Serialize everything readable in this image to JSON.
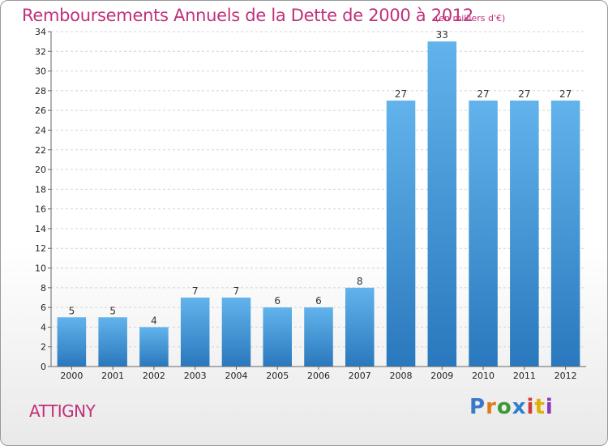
{
  "title": "Remboursements Annuels de la Dette de 2000 à 2012",
  "unit_label": "(en milliers d'€)",
  "town": "ATTIGNY",
  "brand": {
    "letters": [
      "P",
      "r",
      "o",
      "x",
      "i",
      "t",
      "i"
    ],
    "colors": [
      "#3a78c8",
      "#e07b1a",
      "#3a9a3a",
      "#2f7fd0",
      "#d03a3a",
      "#e0b000",
      "#8a3ab8"
    ]
  },
  "colors": {
    "bar_top": "#62b3ec",
    "bar_bottom": "#2a78bd",
    "title": "#c0307a"
  },
  "chart_data": {
    "type": "bar",
    "categories": [
      "2000",
      "2001",
      "2002",
      "2003",
      "2004",
      "2005",
      "2006",
      "2007",
      "2008",
      "2009",
      "2010",
      "2011",
      "2012"
    ],
    "values": [
      5,
      5,
      4,
      7,
      7,
      6,
      6,
      8,
      27,
      33,
      27,
      27,
      27
    ],
    "title": "Remboursements Annuels de la Dette de 2000 à 2012",
    "xlabel": "",
    "ylabel": "",
    "ylim": [
      0,
      34
    ],
    "yticks": [
      0,
      2,
      4,
      6,
      8,
      10,
      12,
      14,
      16,
      18,
      20,
      22,
      24,
      26,
      28,
      30,
      32,
      34
    ],
    "grid": true,
    "legend": "none"
  }
}
